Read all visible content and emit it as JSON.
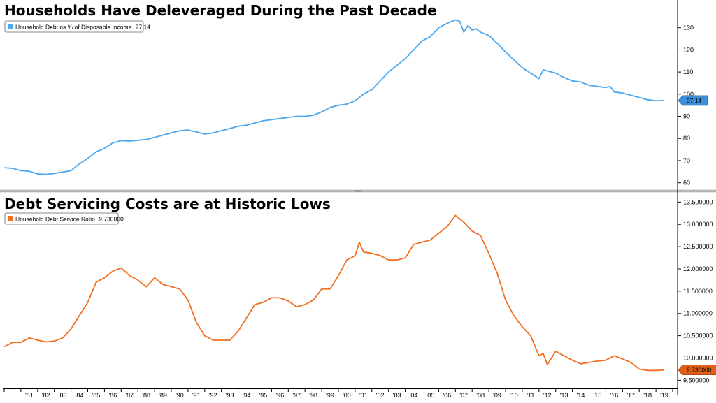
{
  "chart_data": [
    {
      "type": "line",
      "title": "Households Have Deleveraged During the Past Decade",
      "xlabel": "",
      "ylabel": "",
      "ylim": [
        58,
        140
      ],
      "yticks": [
        "60",
        "70",
        "80",
        "90",
        "100",
        "110",
        "120",
        "130"
      ],
      "legend": {
        "label": "Household Debt as % of Disposable Income",
        "value": "97.14",
        "placement": "top-left"
      },
      "last_value_label": "97.14",
      "colors": {
        "line": "#4aa8f0",
        "marker": "#3b8fd8"
      },
      "series": [
        {
          "name": "Household Debt as % of Disposable Income",
          "x": [
            1980.0,
            1980.5,
            1981.0,
            1981.5,
            1982.0,
            1982.5,
            1983.0,
            1983.5,
            1984.0,
            1984.5,
            1985.0,
            1985.5,
            1986.0,
            1986.5,
            1987.0,
            1987.5,
            1988.0,
            1988.5,
            1989.0,
            1989.5,
            1990.0,
            1990.5,
            1991.0,
            1991.5,
            1992.0,
            1992.5,
            1993.0,
            1993.5,
            1994.0,
            1994.5,
            1995.0,
            1995.5,
            1996.0,
            1996.5,
            1997.0,
            1997.5,
            1998.0,
            1998.5,
            1999.0,
            1999.5,
            2000.0,
            2000.5,
            2001.0,
            2001.5,
            2002.0,
            2002.5,
            2003.0,
            2003.5,
            2004.0,
            2004.5,
            2005.0,
            2005.5,
            2006.0,
            2006.5,
            2007.0,
            2007.25,
            2007.5,
            2007.75,
            2008.0,
            2008.25,
            2008.5,
            2009.0,
            2009.5,
            2010.0,
            2010.5,
            2011.0,
            2011.5,
            2012.0,
            2012.25,
            2012.5,
            2013.0,
            2013.5,
            2014.0,
            2014.5,
            2015.0,
            2015.5,
            2016.0,
            2016.25,
            2016.5,
            2017.0,
            2017.5,
            2018.0,
            2018.5,
            2019.0,
            2019.5
          ],
          "values": [
            66.8,
            66.5,
            65.5,
            65.2,
            64.0,
            63.8,
            64.2,
            64.8,
            65.5,
            68.5,
            71.0,
            74.0,
            75.5,
            78.0,
            79.0,
            78.8,
            79.2,
            79.5,
            80.5,
            81.5,
            82.5,
            83.5,
            83.8,
            83.0,
            82.0,
            82.5,
            83.5,
            84.5,
            85.5,
            86.0,
            87.0,
            88.0,
            88.5,
            89.0,
            89.5,
            90.0,
            90.0,
            90.5,
            92.0,
            94.0,
            95.0,
            95.5,
            97.0,
            100.0,
            102.0,
            106.0,
            110.0,
            113.0,
            116.0,
            120.0,
            124.0,
            126.0,
            130.0,
            132.0,
            133.5,
            133.0,
            128.0,
            131.0,
            129.0,
            129.5,
            128.0,
            126.5,
            123.0,
            119.0,
            115.5,
            112.0,
            109.5,
            107.0,
            111.0,
            110.5,
            109.5,
            107.5,
            106.0,
            105.5,
            104.0,
            103.5,
            103.0,
            103.5,
            101.0,
            100.5,
            99.5,
            98.5,
            97.5,
            97.0,
            97.14
          ]
        }
      ]
    },
    {
      "type": "line",
      "title": "Debt Servicing Costs are at Historic Lows",
      "xlabel": "",
      "ylabel": "",
      "ylim": [
        9.38,
        13.6
      ],
      "yticks": [
        "9.500000",
        "10.000000",
        "10.500000",
        "11.000000",
        "11.500000",
        "12.000000",
        "12.500000",
        "13.000000",
        "13.500000"
      ],
      "legend": {
        "label": "Household Debt Service Ratio",
        "value": "9.730000",
        "placement": "top-left"
      },
      "last_value_label": "9.730000",
      "colors": {
        "line": "#f07020",
        "marker": "#e0601a"
      },
      "series": [
        {
          "name": "Household Debt Service Ratio",
          "x": [
            1980.0,
            1980.5,
            1981.0,
            1981.5,
            1982.0,
            1982.5,
            1983.0,
            1983.5,
            1984.0,
            1984.5,
            1985.0,
            1985.5,
            1986.0,
            1986.5,
            1987.0,
            1987.5,
            1988.0,
            1988.5,
            1989.0,
            1989.5,
            1990.0,
            1990.5,
            1991.0,
            1991.5,
            1992.0,
            1992.5,
            1993.0,
            1993.5,
            1994.0,
            1994.5,
            1995.0,
            1995.5,
            1996.0,
            1996.5,
            1997.0,
            1997.5,
            1998.0,
            1998.5,
            1999.0,
            1999.5,
            2000.0,
            2000.5,
            2001.0,
            2001.25,
            2001.5,
            2002.0,
            2002.5,
            2003.0,
            2003.5,
            2004.0,
            2004.5,
            2005.0,
            2005.5,
            2006.0,
            2006.5,
            2007.0,
            2007.5,
            2008.0,
            2008.5,
            2009.0,
            2009.5,
            2010.0,
            2010.5,
            2011.0,
            2011.5,
            2012.0,
            2012.25,
            2012.5,
            2013.0,
            2013.5,
            2014.0,
            2014.5,
            2015.0,
            2015.5,
            2016.0,
            2016.5,
            2017.0,
            2017.5,
            2018.0,
            2018.5,
            2019.0,
            2019.5
          ],
          "values": [
            10.25,
            10.35,
            10.35,
            10.45,
            10.4,
            10.36,
            10.38,
            10.45,
            10.65,
            10.95,
            11.25,
            11.7,
            11.8,
            11.95,
            12.02,
            11.85,
            11.75,
            11.6,
            11.8,
            11.65,
            11.6,
            11.55,
            11.3,
            10.8,
            10.5,
            10.4,
            10.4,
            10.4,
            10.6,
            10.9,
            11.2,
            11.25,
            11.35,
            11.35,
            11.28,
            11.15,
            11.2,
            11.3,
            11.55,
            11.55,
            11.85,
            12.2,
            12.3,
            12.6,
            12.38,
            12.35,
            12.3,
            12.2,
            12.2,
            12.25,
            12.55,
            12.6,
            12.65,
            12.8,
            12.95,
            13.2,
            13.05,
            12.85,
            12.75,
            12.35,
            11.9,
            11.3,
            10.95,
            10.7,
            10.5,
            10.05,
            10.1,
            9.85,
            10.15,
            10.05,
            9.95,
            9.87,
            9.9,
            9.93,
            9.95,
            10.05,
            9.98,
            9.9,
            9.75,
            9.72,
            9.72,
            9.73
          ]
        }
      ]
    }
  ],
  "x_axis": {
    "range": [
      1980,
      2020
    ],
    "tick_labels": [
      "'81",
      "'82",
      "'83",
      "'84",
      "'85",
      "'86",
      "'87",
      "'88",
      "'89",
      "'90",
      "'91",
      "'92",
      "'93",
      "'94",
      "'95",
      "'96",
      "'97",
      "'98",
      "'99",
      "'00",
      "'01",
      "'02",
      "'03",
      "'04",
      "'05",
      "'06",
      "'07",
      "'08",
      "'09",
      "'10",
      "'11",
      "'12",
      "'13",
      "'14",
      "'15",
      "'16",
      "'17",
      "'18",
      "'19"
    ]
  }
}
